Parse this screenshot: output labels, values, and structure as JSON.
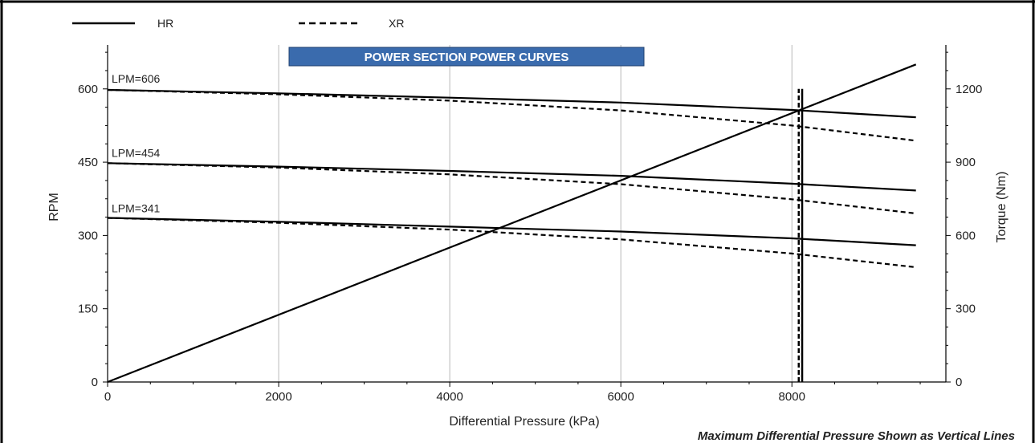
{
  "chart_data": {
    "type": "line",
    "title": "POWER SECTION POWER CURVES",
    "xlabel": "Differential Pressure (kPa)",
    "ylabel": "RPM",
    "y2label": "Torque (Nm)",
    "footnote": "Maximum Differential Pressure Shown as Vertical Lines",
    "xlim": [
      0,
      9800
    ],
    "ylim": [
      0,
      690
    ],
    "y2lim": [
      0,
      1380
    ],
    "x_ticks": [
      0,
      2000,
      4000,
      6000,
      8000
    ],
    "y_ticks": [
      0,
      150,
      300,
      450,
      600
    ],
    "y2_ticks": [
      0,
      300,
      600,
      900,
      1200
    ],
    "grid": "vertical",
    "legend": [
      {
        "label": "HR",
        "style": "solid"
      },
      {
        "label": "XR",
        "style": "dashed"
      }
    ],
    "legend_position": "top",
    "flow_labels": [
      {
        "text": "LPM=606",
        "x": 0,
        "y": 606
      },
      {
        "text": "LPM=454",
        "x": 0,
        "y": 454
      },
      {
        "text": "LPM=341",
        "x": 0,
        "y": 341
      }
    ],
    "series": [
      {
        "name": "HR",
        "flow": "LPM=606",
        "style": "solid",
        "axis": "rpm",
        "x": [
          0,
          2000,
          4000,
          6000,
          8000,
          9450
        ],
        "y": [
          598,
          591,
          582,
          572,
          557,
          542
        ]
      },
      {
        "name": "XR",
        "flow": "LPM=606",
        "style": "dashed",
        "axis": "rpm",
        "x": [
          0,
          2000,
          4000,
          6000,
          8000,
          9450
        ],
        "y": [
          598,
          589,
          576,
          556,
          525,
          494
        ]
      },
      {
        "name": "HR",
        "flow": "LPM=454",
        "style": "solid",
        "axis": "rpm",
        "x": [
          0,
          2000,
          4000,
          6000,
          8000,
          9450
        ],
        "y": [
          448,
          441,
          432,
          422,
          406,
          392
        ]
      },
      {
        "name": "XR",
        "flow": "LPM=454",
        "style": "dashed",
        "axis": "rpm",
        "x": [
          0,
          2000,
          4000,
          6000,
          8000,
          9450
        ],
        "y": [
          448,
          439,
          425,
          405,
          374,
          345
        ]
      },
      {
        "name": "HR",
        "flow": "LPM=341",
        "style": "solid",
        "axis": "rpm",
        "x": [
          0,
          2000,
          4000,
          6000,
          8000,
          9450
        ],
        "y": [
          336,
          328,
          318,
          308,
          294,
          280
        ]
      },
      {
        "name": "XR",
        "flow": "LPM=341",
        "style": "dashed",
        "axis": "rpm",
        "x": [
          0,
          2000,
          4000,
          6000,
          8000,
          9450
        ],
        "y": [
          336,
          326,
          312,
          292,
          263,
          235
        ]
      },
      {
        "name": "Torque",
        "style": "solid",
        "axis": "torque",
        "x": [
          0,
          9450
        ],
        "y": [
          0,
          1300
        ]
      }
    ],
    "max_pressure_lines": [
      {
        "style": "solid",
        "x": 8120,
        "y": [
          0,
          600
        ]
      },
      {
        "style": "dashed",
        "x": 8080,
        "y": [
          0,
          600
        ]
      }
    ]
  }
}
